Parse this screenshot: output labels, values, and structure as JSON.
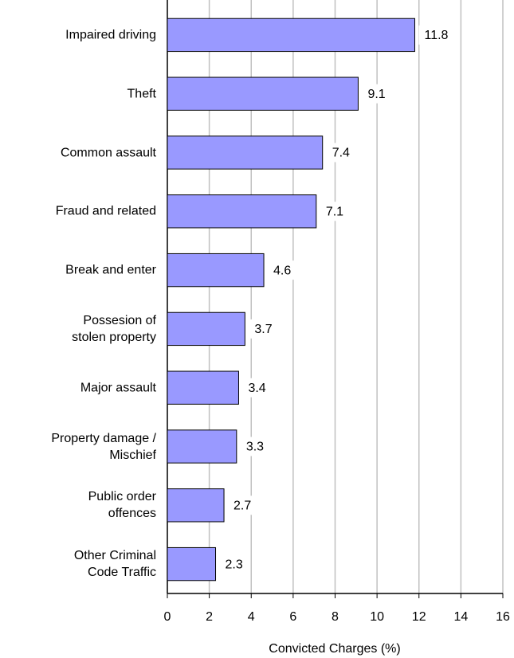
{
  "chart_data": {
    "type": "bar",
    "orientation": "horizontal",
    "categories": [
      "Impaired driving",
      "Theft",
      "Common assault",
      "Fraud and related",
      "Break and enter",
      "Possesion of\nstolen property",
      "Major assault",
      "Property damage /\nMischief",
      "Public order\noffences",
      "Other Criminal\nCode Traffic"
    ],
    "values": [
      11.8,
      9.1,
      7.4,
      7.1,
      4.6,
      3.7,
      3.4,
      3.3,
      2.7,
      2.3
    ],
    "color": "#9999ff",
    "xlabel": "Convicted Charges (%)",
    "xlim": [
      0,
      16
    ],
    "xticks": [
      0,
      2,
      4,
      6,
      8,
      10,
      12,
      14,
      16
    ],
    "grid": true
  }
}
